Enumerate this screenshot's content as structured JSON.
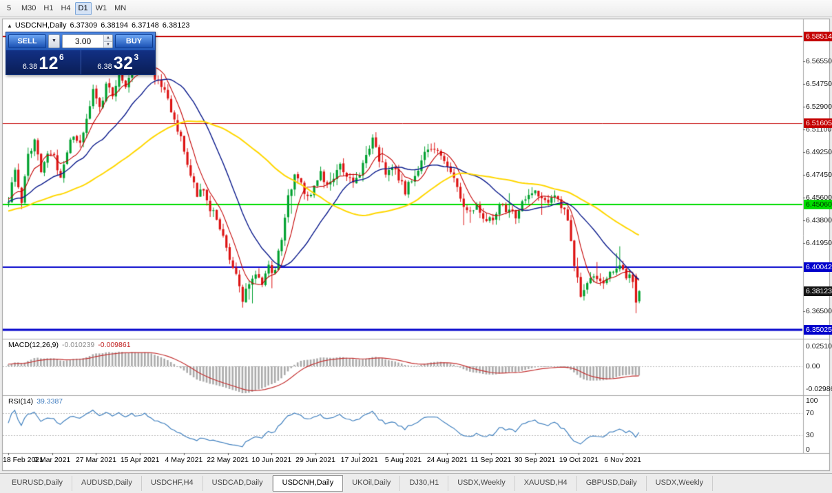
{
  "toolbar": {
    "timeframes": [
      {
        "label": "5",
        "active": false
      },
      {
        "label": "M30",
        "active": false
      },
      {
        "label": "H1",
        "active": false
      },
      {
        "label": "H4",
        "active": false
      },
      {
        "label": "D1",
        "active": true
      },
      {
        "label": "W1",
        "active": false
      },
      {
        "label": "MN",
        "active": false
      }
    ]
  },
  "chart": {
    "symbol_header": {
      "collapse_icon": "▲",
      "symbol": "USDCNH,Daily",
      "open": "6.37309",
      "high": "6.38194",
      "low": "6.37148",
      "close": "6.38123"
    },
    "price_axis_ticks": [
      "6.56550",
      "6.54750",
      "6.52900",
      "6.51100",
      "6.49250",
      "6.47450",
      "6.45600",
      "6.43800",
      "6.41950",
      "6.36500"
    ],
    "price_badges": [
      {
        "text": "6.58514",
        "value": 6.58514,
        "bg": "#c40000",
        "fg": "#ffffff"
      },
      {
        "text": "6.51605",
        "value": 6.51605,
        "bg": "#c40000",
        "fg": "#ffffff"
      },
      {
        "text": "6.45060",
        "value": 6.4506,
        "bg": "#00dd00",
        "fg": "#003300"
      },
      {
        "text": "6.40042",
        "value": 6.40042,
        "bg": "#0000cc",
        "fg": "#ffffff"
      },
      {
        "text": "6.38123",
        "value": 6.38123,
        "bg": "#141414",
        "fg": "#ffffff"
      },
      {
        "text": "6.35025",
        "value": 6.35025,
        "bg": "#0000cc",
        "fg": "#ffffff"
      }
    ],
    "hlines": [
      {
        "value": 6.58514,
        "color": "#c40000",
        "width": 2
      },
      {
        "value": 6.51605,
        "color": "#c40000",
        "width": 1
      },
      {
        "value": 6.4506,
        "color": "#00dd00",
        "width": 2
      },
      {
        "value": 6.40042,
        "color": "#0000cc",
        "width": 2
      },
      {
        "value": 6.35025,
        "color": "#0000cc",
        "width": 3
      }
    ],
    "date_labels": [
      "18 Feb 2021",
      "9 Mar 2021",
      "27 Mar 2021",
      "15 Apr 2021",
      "4 May 2021",
      "22 May 2021",
      "10 Jun 2021",
      "29 Jun 2021",
      "17 Jul 2021",
      "5 Aug 2021",
      "24 Aug 2021",
      "11 Sep 2021",
      "30 Sep 2021",
      "19 Oct 2021",
      "6 Nov 2021"
    ],
    "macd": {
      "label": "MACD(12,26,9)",
      "value1": "-0.010239",
      "value2": "-0.009861",
      "scale": [
        {
          "text": "0.02510",
          "value": 0.0251
        },
        {
          "text": "0.00",
          "value": 0
        },
        {
          "text": "-0.02986",
          "value": -0.02986
        }
      ]
    },
    "rsi": {
      "label": "RSI(14)",
      "value": "39.3387",
      "scale": [
        {
          "text": "100",
          "value": 100
        },
        {
          "text": "70",
          "value": 70
        },
        {
          "text": "30",
          "value": 30
        },
        {
          "text": "0",
          "value": 0
        }
      ]
    }
  },
  "trade_panel": {
    "sell_label": "SELL",
    "buy_label": "BUY",
    "volume": "3.00",
    "dropdown_icon": "▼",
    "spin_up_icon": "▲",
    "spin_down_icon": "▼",
    "bid": {
      "prefix": "6.38",
      "big": "12",
      "sup": "6"
    },
    "ask": {
      "prefix": "6.38",
      "big": "32",
      "sup": "3"
    }
  },
  "tabs": [
    {
      "label": "EURUSD,Daily",
      "active": false
    },
    {
      "label": "AUDUSD,Daily",
      "active": false
    },
    {
      "label": "USDCHF,H4",
      "active": false
    },
    {
      "label": "USDCAD,Daily",
      "active": false
    },
    {
      "label": "USDCNH,Daily",
      "active": true
    },
    {
      "label": "UKOil,Daily",
      "active": false
    },
    {
      "label": "DJ30,H1",
      "active": false
    },
    {
      "label": "USDX,Weekly",
      "active": false
    },
    {
      "label": "XAUUSD,H4",
      "active": false
    },
    {
      "label": "GBPUSD,Daily",
      "active": false
    },
    {
      "label": "USDX,Weekly",
      "active": false
    }
  ],
  "chart_data": {
    "type": "candlestick",
    "symbol": "USDCNH",
    "timeframe": "Daily",
    "bar_count": 195,
    "warmup_bars": 60,
    "seed": 42,
    "noise": 0.0035,
    "wick": 0.005,
    "price_axis_range": [
      6.3441,
      6.5981
    ],
    "keypoints": [
      [
        -60,
        6.425
      ],
      [
        -45,
        6.436
      ],
      [
        -30,
        6.445
      ],
      [
        -15,
        6.452
      ],
      [
        0,
        6.456
      ],
      [
        2,
        6.476
      ],
      [
        4,
        6.452
      ],
      [
        6,
        6.488
      ],
      [
        8,
        6.502
      ],
      [
        10,
        6.478
      ],
      [
        12,
        6.492
      ],
      [
        14,
        6.488
      ],
      [
        16,
        6.47
      ],
      [
        18,
        6.495
      ],
      [
        20,
        6.508
      ],
      [
        22,
        6.5
      ],
      [
        24,
        6.52
      ],
      [
        26,
        6.54
      ],
      [
        28,
        6.528
      ],
      [
        30,
        6.546
      ],
      [
        32,
        6.538
      ],
      [
        34,
        6.554
      ],
      [
        36,
        6.546
      ],
      [
        38,
        6.562
      ],
      [
        40,
        6.556
      ],
      [
        42,
        6.57
      ],
      [
        44,
        6.558
      ],
      [
        46,
        6.548
      ],
      [
        48,
        6.54
      ],
      [
        50,
        6.528
      ],
      [
        52,
        6.51
      ],
      [
        54,
        6.496
      ],
      [
        56,
        6.474
      ],
      [
        58,
        6.456
      ],
      [
        60,
        6.464
      ],
      [
        62,
        6.448
      ],
      [
        64,
        6.438
      ],
      [
        66,
        6.428
      ],
      [
        68,
        6.408
      ],
      [
        70,
        6.394
      ],
      [
        72,
        6.372
      ],
      [
        74,
        6.39
      ],
      [
        76,
        6.398
      ],
      [
        78,
        6.386
      ],
      [
        80,
        6.4
      ],
      [
        82,
        6.396
      ],
      [
        84,
        6.425
      ],
      [
        86,
        6.455
      ],
      [
        88,
        6.476
      ],
      [
        90,
        6.466
      ],
      [
        92,
        6.456
      ],
      [
        94,
        6.464
      ],
      [
        96,
        6.476
      ],
      [
        98,
        6.466
      ],
      [
        100,
        6.47
      ],
      [
        102,
        6.48
      ],
      [
        104,
        6.476
      ],
      [
        106,
        6.47
      ],
      [
        108,
        6.477
      ],
      [
        110,
        6.487
      ],
      [
        112,
        6.506
      ],
      [
        114,
        6.486
      ],
      [
        116,
        6.477
      ],
      [
        118,
        6.481
      ],
      [
        120,
        6.47
      ],
      [
        122,
        6.462
      ],
      [
        124,
        6.472
      ],
      [
        126,
        6.481
      ],
      [
        128,
        6.49
      ],
      [
        130,
        6.497
      ],
      [
        132,
        6.492
      ],
      [
        134,
        6.486
      ],
      [
        136,
        6.478
      ],
      [
        138,
        6.462
      ],
      [
        140,
        6.45
      ],
      [
        142,
        6.446
      ],
      [
        144,
        6.452
      ],
      [
        146,
        6.441
      ],
      [
        148,
        6.437
      ],
      [
        150,
        6.443
      ],
      [
        152,
        6.451
      ],
      [
        154,
        6.445
      ],
      [
        156,
        6.441
      ],
      [
        158,
        6.451
      ],
      [
        160,
        6.461
      ],
      [
        162,
        6.464
      ],
      [
        164,
        6.456
      ],
      [
        166,
        6.452
      ],
      [
        168,
        6.459
      ],
      [
        170,
        6.45
      ],
      [
        172,
        6.438
      ],
      [
        174,
        6.404
      ],
      [
        176,
        6.378
      ],
      [
        178,
        6.388
      ],
      [
        180,
        6.396
      ],
      [
        182,
        6.387
      ],
      [
        184,
        6.392
      ],
      [
        186,
        6.398
      ],
      [
        188,
        6.403
      ],
      [
        190,
        6.394
      ],
      [
        192,
        6.39
      ],
      [
        194,
        6.381
      ]
    ],
    "prev_bar": {
      "o": 6.3935,
      "h": 6.3952,
      "l": 6.3635,
      "c": 6.372
    },
    "last_bar": {
      "o": 6.37309,
      "h": 6.38194,
      "l": 6.37148,
      "c": 6.38123
    },
    "moving_averages": [
      {
        "period": 7,
        "color": "#c40000",
        "width": 1.1
      },
      {
        "period": 21,
        "color": "#0a1a8c",
        "width": 1.4
      },
      {
        "period": 55,
        "color": "#ffd700",
        "width": 2
      }
    ],
    "macd_params": [
      12,
      26,
      9
    ],
    "rsi_period": 14,
    "colors": {
      "up": "#00a12f",
      "down": "#dd1414",
      "macd_hist": "#ababab",
      "macd_signal": "#c43030",
      "rsi_line": "#4080bf",
      "level_dash": "#bcbcbc",
      "separator": "#a6a6a6",
      "frame": "#9c9c9c",
      "tick_text": "#1a1a1a"
    }
  }
}
